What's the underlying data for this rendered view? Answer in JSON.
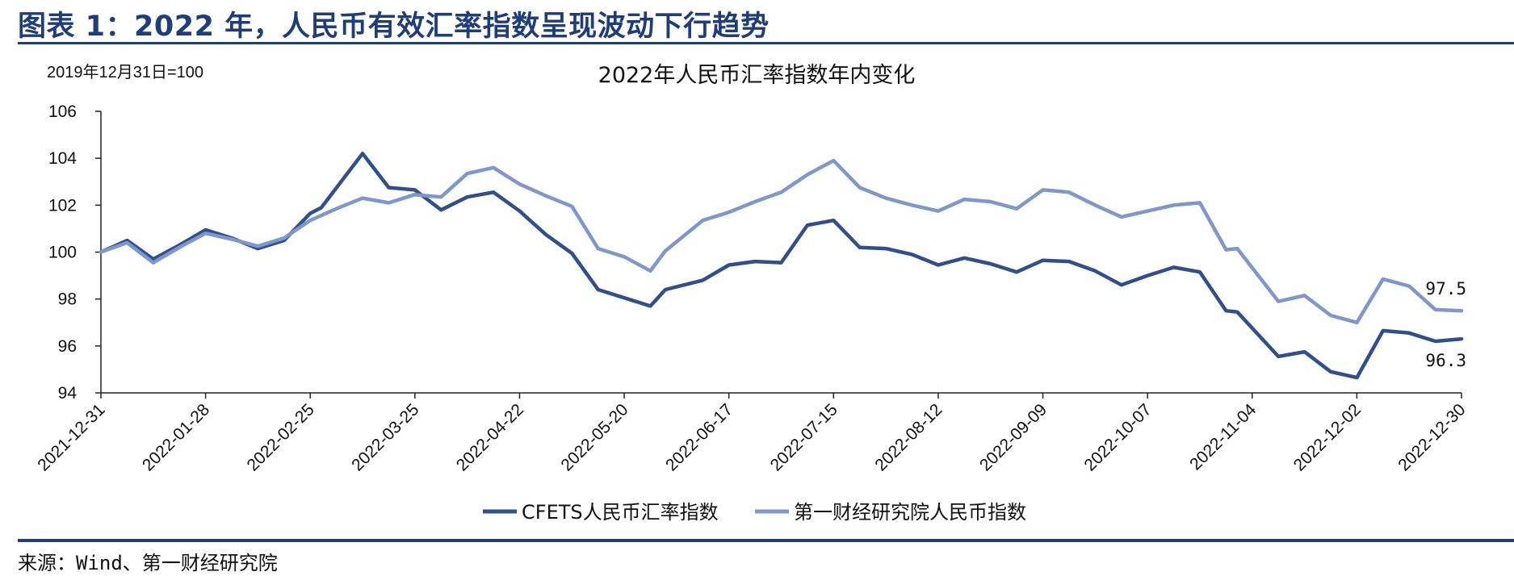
{
  "figure": {
    "title": "图表 1：2022 年，人民币有效汇率指数呈现波动下行趋势",
    "source": "来源：Wind、第一财经研究院"
  },
  "colors": {
    "header": "#1f3d7a",
    "series_cfets": "#2f4f8f",
    "series_yicai": "#7f97cf"
  },
  "chart_data": {
    "type": "line",
    "title": "2022年人民币汇率指数年内变化",
    "unit_note": "2019年12月31日=100",
    "xlabel": "",
    "ylabel": "",
    "ylim": [
      94,
      106
    ],
    "yticks": [
      94,
      96,
      98,
      100,
      102,
      104,
      106
    ],
    "xlim": [
      "2021-12-31",
      "2022-12-30"
    ],
    "xticks": [
      "2021-12-31",
      "2022-01-28",
      "2022-02-25",
      "2022-03-25",
      "2022-04-22",
      "2022-05-20",
      "2022-06-17",
      "2022-07-15",
      "2022-08-12",
      "2022-09-09",
      "2022-10-07",
      "2022-11-04",
      "2022-12-02",
      "2022-12-30"
    ],
    "grid": false,
    "legend": "bottom",
    "series": [
      {
        "name": "CFETS人民币汇率指数",
        "color": "#2f4f8f",
        "end_label": "96.3",
        "points": [
          [
            "2021-12-31",
            100.0
          ],
          [
            "2022-01-07",
            100.5
          ],
          [
            "2022-01-14",
            99.7
          ],
          [
            "2022-01-21",
            100.3
          ],
          [
            "2022-01-28",
            100.95
          ],
          [
            "2022-02-04",
            100.6
          ],
          [
            "2022-02-11",
            100.15
          ],
          [
            "2022-02-18",
            100.5
          ],
          [
            "2022-02-25",
            101.65
          ],
          [
            "2022-02-28",
            101.9
          ],
          [
            "2022-03-11",
            104.2
          ],
          [
            "2022-03-18",
            102.75
          ],
          [
            "2022-03-25",
            102.65
          ],
          [
            "2022-04-01",
            101.8
          ],
          [
            "2022-04-08",
            102.35
          ],
          [
            "2022-04-15",
            102.55
          ],
          [
            "2022-04-22",
            101.75
          ],
          [
            "2022-04-29",
            100.75
          ],
          [
            "2022-05-06",
            99.95
          ],
          [
            "2022-05-13",
            98.4
          ],
          [
            "2022-05-20",
            98.05
          ],
          [
            "2022-05-27",
            97.7
          ],
          [
            "2022-05-31",
            98.4
          ],
          [
            "2022-06-10",
            98.8
          ],
          [
            "2022-06-17",
            99.45
          ],
          [
            "2022-06-24",
            99.6
          ],
          [
            "2022-07-01",
            99.55
          ],
          [
            "2022-07-08",
            101.15
          ],
          [
            "2022-07-15",
            101.35
          ],
          [
            "2022-07-22",
            100.2
          ],
          [
            "2022-07-29",
            100.15
          ],
          [
            "2022-08-05",
            99.9
          ],
          [
            "2022-08-12",
            99.45
          ],
          [
            "2022-08-19",
            99.75
          ],
          [
            "2022-08-26",
            99.5
          ],
          [
            "2022-09-02",
            99.15
          ],
          [
            "2022-09-09",
            99.65
          ],
          [
            "2022-09-16",
            99.6
          ],
          [
            "2022-09-23",
            99.2
          ],
          [
            "2022-09-30",
            98.6
          ],
          [
            "2022-10-07",
            99.0
          ],
          [
            "2022-10-14",
            99.35
          ],
          [
            "2022-10-21",
            99.15
          ],
          [
            "2022-10-28",
            97.5
          ],
          [
            "2022-10-31",
            97.45
          ],
          [
            "2022-11-11",
            95.55
          ],
          [
            "2022-11-18",
            95.75
          ],
          [
            "2022-11-25",
            94.9
          ],
          [
            "2022-12-02",
            94.65
          ],
          [
            "2022-12-09",
            96.65
          ],
          [
            "2022-12-16",
            96.55
          ],
          [
            "2022-12-23",
            96.2
          ],
          [
            "2022-12-30",
            96.3
          ]
        ]
      },
      {
        "name": "第一财经研究院人民币指数",
        "color": "#7f97cf",
        "end_label": "97.5",
        "points": [
          [
            "2021-12-31",
            100.0
          ],
          [
            "2022-01-07",
            100.4
          ],
          [
            "2022-01-14",
            99.55
          ],
          [
            "2022-01-21",
            100.2
          ],
          [
            "2022-01-28",
            100.8
          ],
          [
            "2022-02-04",
            100.55
          ],
          [
            "2022-02-11",
            100.25
          ],
          [
            "2022-02-18",
            100.6
          ],
          [
            "2022-02-25",
            101.35
          ],
          [
            "2022-03-04",
            101.85
          ],
          [
            "2022-03-11",
            102.3
          ],
          [
            "2022-03-18",
            102.1
          ],
          [
            "2022-03-25",
            102.45
          ],
          [
            "2022-04-01",
            102.35
          ],
          [
            "2022-04-08",
            103.35
          ],
          [
            "2022-04-15",
            103.6
          ],
          [
            "2022-04-22",
            102.9
          ],
          [
            "2022-04-29",
            102.4
          ],
          [
            "2022-05-06",
            101.95
          ],
          [
            "2022-05-13",
            100.15
          ],
          [
            "2022-05-20",
            99.8
          ],
          [
            "2022-05-27",
            99.2
          ],
          [
            "2022-05-31",
            100.05
          ],
          [
            "2022-06-10",
            101.35
          ],
          [
            "2022-06-17",
            101.7
          ],
          [
            "2022-06-24",
            102.15
          ],
          [
            "2022-07-01",
            102.55
          ],
          [
            "2022-07-08",
            103.3
          ],
          [
            "2022-07-15",
            103.9
          ],
          [
            "2022-07-22",
            102.75
          ],
          [
            "2022-07-29",
            102.3
          ],
          [
            "2022-08-05",
            102.0
          ],
          [
            "2022-08-12",
            101.75
          ],
          [
            "2022-08-19",
            102.25
          ],
          [
            "2022-08-26",
            102.15
          ],
          [
            "2022-09-02",
            101.85
          ],
          [
            "2022-09-09",
            102.65
          ],
          [
            "2022-09-16",
            102.55
          ],
          [
            "2022-09-23",
            102.0
          ],
          [
            "2022-09-30",
            101.5
          ],
          [
            "2022-10-07",
            101.75
          ],
          [
            "2022-10-14",
            102.0
          ],
          [
            "2022-10-21",
            102.1
          ],
          [
            "2022-10-28",
            100.1
          ],
          [
            "2022-10-31",
            100.15
          ],
          [
            "2022-11-11",
            97.9
          ],
          [
            "2022-11-18",
            98.15
          ],
          [
            "2022-11-25",
            97.3
          ],
          [
            "2022-12-02",
            97.0
          ],
          [
            "2022-12-09",
            98.85
          ],
          [
            "2022-12-16",
            98.55
          ],
          [
            "2022-12-23",
            97.55
          ],
          [
            "2022-12-30",
            97.5
          ]
        ]
      }
    ]
  }
}
